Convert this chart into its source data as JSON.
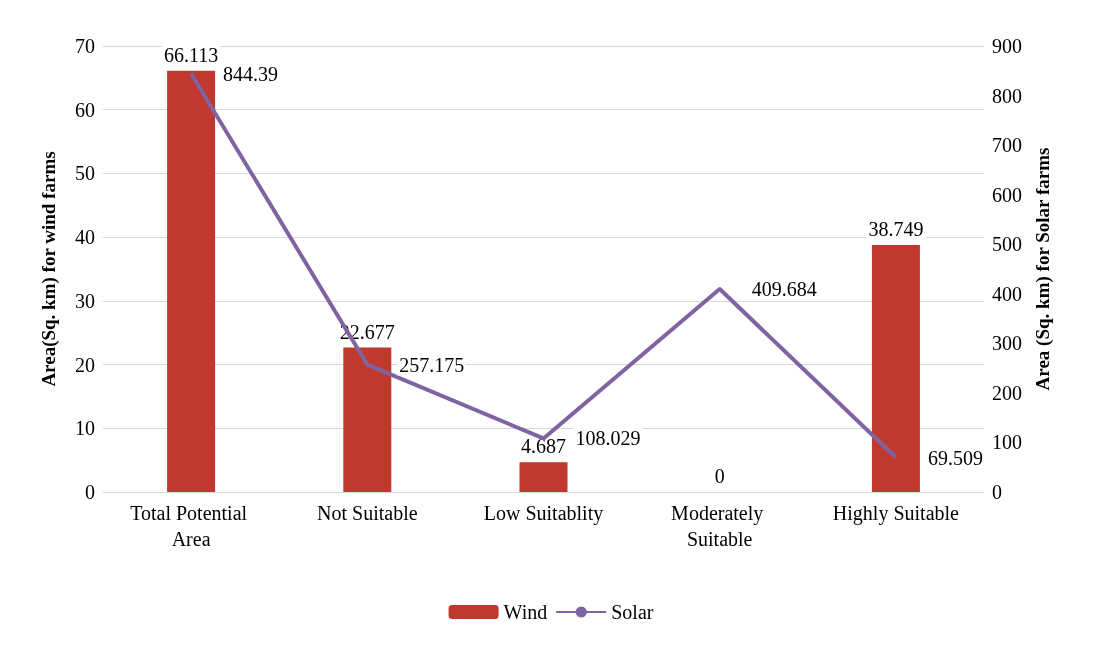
{
  "chart_data": {
    "type": "bar",
    "ylabel": "Area(Sq. km) for wind farms",
    "y2label": "Area (Sq. km) for Solar farms",
    "categories": [
      "Total Potential Area",
      "Not Suitable",
      "Low Suitablity",
      "Moderately Suitable",
      "Highly Suitable"
    ],
    "series": [
      {
        "name": "Wind",
        "color": "#c0392f",
        "values": [
          66.113,
          22.677,
          4.687,
          0,
          38.749
        ]
      },
      {
        "name": "Solar",
        "type": "line",
        "axis": "y2",
        "color": "#8064a2",
        "values": [
          844.39,
          257.175,
          108.029,
          409.684,
          69.509
        ]
      }
    ],
    "ylim": [
      0,
      70
    ],
    "yticks": [
      0,
      10,
      20,
      30,
      40,
      50,
      60,
      70
    ],
    "y2lim": [
      0,
      900
    ],
    "y2ticks": [
      0,
      100,
      200,
      300,
      400,
      500,
      600,
      700,
      800,
      900
    ],
    "grid": "y",
    "legend": "bottom",
    "data_labels": true,
    "marker": "none",
    "line_style": "solid"
  }
}
